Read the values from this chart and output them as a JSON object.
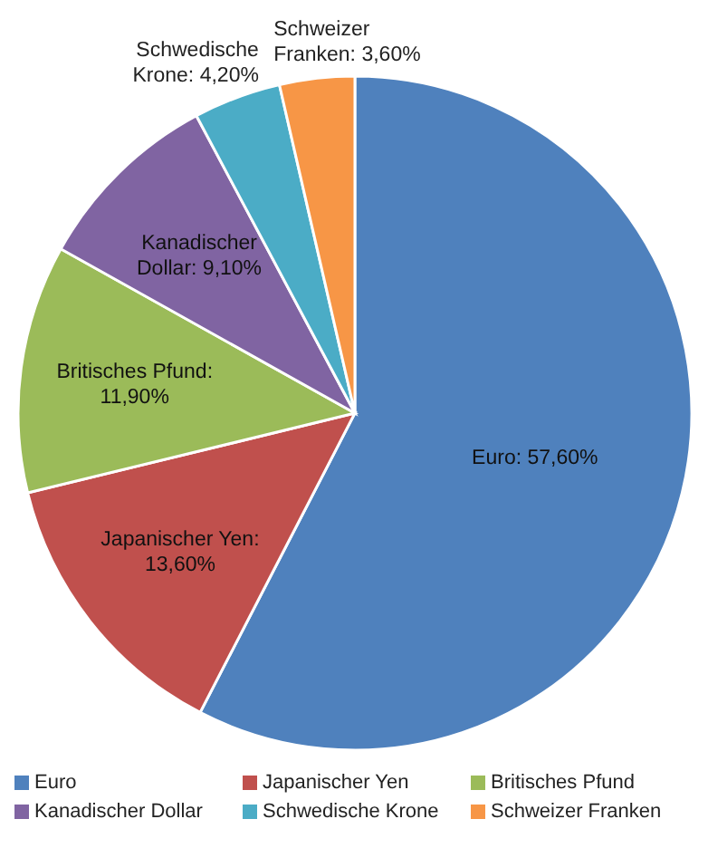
{
  "chart_data": {
    "type": "pie",
    "categories": [
      "Euro",
      "Japanischer Yen",
      "Britisches Pfund",
      "Kanadischer Dollar",
      "Schwedische Krone",
      "Schweizer Franken"
    ],
    "values": [
      57.6,
      13.6,
      11.9,
      9.1,
      4.2,
      3.6
    ],
    "colors": [
      "#4f81bd",
      "#c0504d",
      "#9bbb59",
      "#8064a2",
      "#4bacc6",
      "#f79646"
    ],
    "value_labels": [
      "Euro: 57,60%",
      "Japanischer Yen: 13,60%",
      "Britisches Pfund: 11,90%",
      "Kanadischer Dollar: 9,10%",
      "Schwedische Krone: 4,20%",
      "Schweizer Franken: 3,60%"
    ],
    "legend": "bottom"
  }
}
